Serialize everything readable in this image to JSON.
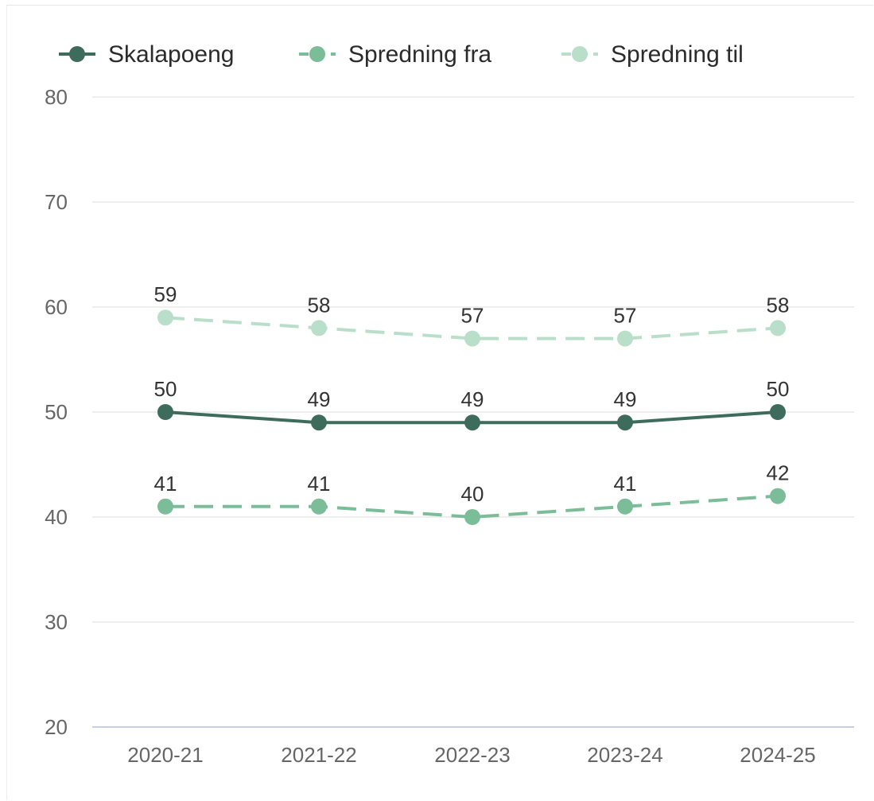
{
  "chart_data": {
    "type": "line",
    "categories": [
      "2020-21",
      "2021-22",
      "2022-23",
      "2023-24",
      "2024-25"
    ],
    "series": [
      {
        "name": "Skalapoeng",
        "values": [
          50,
          49,
          49,
          49,
          50
        ],
        "color": "#3d6b5c",
        "dashed": false
      },
      {
        "name": "Spredning fra",
        "values": [
          41,
          41,
          40,
          41,
          42
        ],
        "color": "#7bbd98",
        "dashed": true
      },
      {
        "name": "Spredning til",
        "values": [
          59,
          58,
          57,
          57,
          58
        ],
        "color": "#b9dfca",
        "dashed": true
      }
    ],
    "ylim": [
      20,
      80
    ],
    "yticks": [
      20,
      30,
      40,
      50,
      60,
      70,
      80
    ],
    "grid": true,
    "legend_position": "top-left",
    "data_labels": true
  }
}
